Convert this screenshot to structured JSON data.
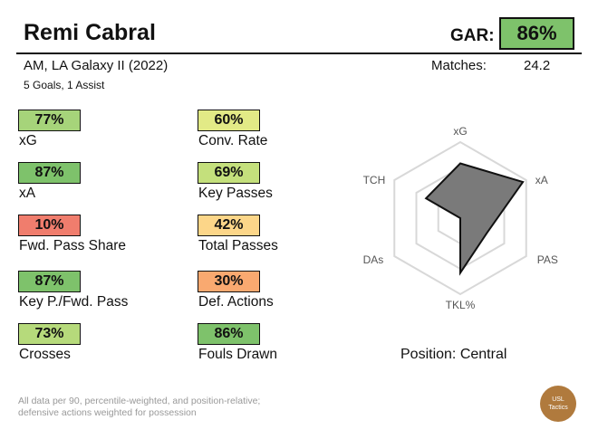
{
  "player": {
    "name": "Remi Cabral",
    "subtitle": "AM, LA Galaxy II (2022)",
    "goals_assists": "5 Goals,  1 Assist"
  },
  "gar": {
    "label": "GAR:",
    "value": "86%",
    "color": "#7ec26b"
  },
  "matches": {
    "label": "Matches:",
    "value": "24.2"
  },
  "metrics": [
    {
      "value": "77%",
      "label": "xG",
      "color": "#a6d47a"
    },
    {
      "value": "60%",
      "label": "Conv. Rate",
      "color": "#e2ea86"
    },
    {
      "value": "87%",
      "label": "xA",
      "color": "#7ec26b"
    },
    {
      "value": "69%",
      "label": "Key Passes",
      "color": "#c4e07c"
    },
    {
      "value": "10%",
      "label": "Fwd. Pass Share",
      "color": "#f07d6d"
    },
    {
      "value": "42%",
      "label": "Total Passes",
      "color": "#fcd689"
    },
    {
      "value": "87%",
      "label": "Key P./Fwd. Pass",
      "color": "#7ec26b"
    },
    {
      "value": "30%",
      "label": "Def. Actions",
      "color": "#f9a970"
    },
    {
      "value": "73%",
      "label": "Crosses",
      "color": "#b6da7b"
    },
    {
      "value": "86%",
      "label": "Fouls Drawn",
      "color": "#7ec26b"
    }
  ],
  "radar": {
    "axes": [
      "xG",
      "xA",
      "PAS",
      "TKL%",
      "DAs",
      "TCH"
    ],
    "values": [
      0.72,
      0.95,
      0.4,
      0.72,
      0.0,
      0.52
    ],
    "fill_color": "#7a7a7a",
    "grid_color": "#d8d8d8"
  },
  "position": "Position: Central",
  "footnote": {
    "line1": "All data per 90, percentile-weighted, and position-relative;",
    "line2": "defensive actions weighted for possession"
  },
  "logo": {
    "line1": "USL",
    "line2": "Tactics",
    "color": "#b07a3d"
  }
}
